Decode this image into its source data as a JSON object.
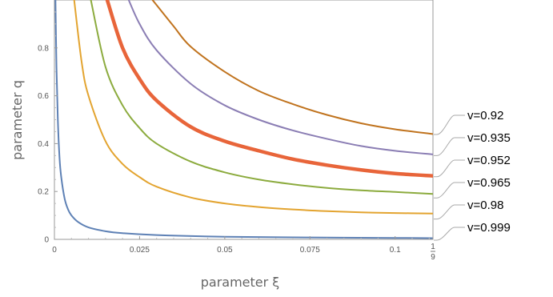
{
  "chart_data": {
    "type": "line",
    "xlabel": "parameter ξ",
    "ylabel": "parameter q",
    "xlim": [
      0,
      0.1111111
    ],
    "ylim": [
      0,
      1
    ],
    "x_ticks": [
      {
        "value": 0,
        "label": "0"
      },
      {
        "value": 0.025,
        "label": "0.025"
      },
      {
        "value": 0.05,
        "label": "0.05"
      },
      {
        "value": 0.075,
        "label": "0.075"
      },
      {
        "value": 0.1,
        "label": "0.1"
      }
    ],
    "x_end_tick": {
      "value": 0.1111111,
      "numerator": "1",
      "denominator": "9"
    },
    "y_ticks": [
      {
        "value": 0,
        "label": "0"
      },
      {
        "value": 0.2,
        "label": "0.2"
      },
      {
        "value": 0.4,
        "label": "0.4"
      },
      {
        "value": 0.6,
        "label": "0.6"
      },
      {
        "value": 0.8,
        "label": "0.8"
      }
    ],
    "grid": false,
    "series": [
      {
        "name": "v=0.92",
        "color": "#C0731E",
        "bold": false,
        "x": [
          0.0288,
          0.035,
          0.04,
          0.05,
          0.06,
          0.07,
          0.08,
          0.09,
          0.1,
          0.1111
        ],
        "values": [
          1.0,
          0.89,
          0.805,
          0.7,
          0.62,
          0.565,
          0.52,
          0.485,
          0.46,
          0.44
        ]
      },
      {
        "name": "v=0.935",
        "color": "#8B7EB4",
        "bold": false,
        "x": [
          0.0218,
          0.025,
          0.03,
          0.04,
          0.05,
          0.06,
          0.07,
          0.08,
          0.09,
          0.1,
          0.1111
        ],
        "values": [
          1.0,
          0.9,
          0.79,
          0.65,
          0.56,
          0.5,
          0.455,
          0.42,
          0.39,
          0.37,
          0.355
        ]
      },
      {
        "name": "v=0.952",
        "color": "#E8653A",
        "bold": true,
        "x": [
          0.0155,
          0.02,
          0.025,
          0.03,
          0.04,
          0.05,
          0.06,
          0.07,
          0.08,
          0.09,
          0.1,
          0.1111
        ],
        "values": [
          1.0,
          0.8,
          0.67,
          0.58,
          0.47,
          0.41,
          0.37,
          0.335,
          0.31,
          0.29,
          0.275,
          0.265
        ]
      },
      {
        "name": "v=0.965",
        "color": "#8CAB3E",
        "bold": false,
        "x": [
          0.0107,
          0.015,
          0.02,
          0.025,
          0.03,
          0.04,
          0.05,
          0.06,
          0.07,
          0.08,
          0.09,
          0.1,
          0.1111
        ],
        "values": [
          1.0,
          0.72,
          0.56,
          0.465,
          0.4,
          0.325,
          0.28,
          0.25,
          0.23,
          0.215,
          0.205,
          0.198,
          0.19
        ]
      },
      {
        "name": "v=0.98",
        "color": "#E3A430",
        "bold": false,
        "x": [
          0.0058,
          0.008,
          0.01,
          0.015,
          0.02,
          0.025,
          0.03,
          0.04,
          0.05,
          0.06,
          0.07,
          0.08,
          0.09,
          0.1,
          0.1111
        ],
        "values": [
          1.0,
          0.74,
          0.6,
          0.41,
          0.315,
          0.26,
          0.22,
          0.175,
          0.15,
          0.135,
          0.125,
          0.118,
          0.113,
          0.11,
          0.108
        ]
      },
      {
        "name": "v=0.999",
        "color": "#5E81B5",
        "bold": false,
        "x": [
          0.0003,
          0.0006,
          0.001,
          0.0015,
          0.002,
          0.003,
          0.004,
          0.005,
          0.007,
          0.01,
          0.015,
          0.02,
          0.03,
          0.05,
          0.075,
          0.1,
          0.1111
        ],
        "values": [
          1.0,
          0.72,
          0.5,
          0.34,
          0.26,
          0.17,
          0.125,
          0.1,
          0.072,
          0.05,
          0.034,
          0.026,
          0.018,
          0.011,
          0.008,
          0.006,
          0.005
        ]
      }
    ],
    "legend_order": [
      "v=0.92",
      "v=0.935",
      "v=0.952",
      "v=0.965",
      "v=0.98",
      "v=0.999"
    ],
    "legend_placement": "right",
    "legend_leader_color": "#AAAAAA"
  }
}
